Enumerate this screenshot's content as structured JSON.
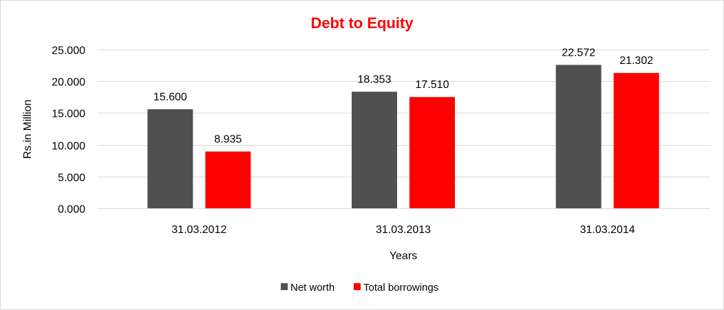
{
  "chart_data": {
    "type": "bar",
    "title": "Debt to Equity",
    "title_color": "#ff0000",
    "xlabel": "Years",
    "ylabel": "Rs.in Million",
    "categories": [
      "31.03.2012",
      "31.03.2013",
      "31.03.2014"
    ],
    "series": [
      {
        "name": "Net worth",
        "color": "#505050",
        "values": [
          15.6,
          18.353,
          22.572
        ],
        "labels": [
          "15.600",
          "18.353",
          "22.572"
        ]
      },
      {
        "name": "Total borrowings",
        "color": "#ff0000",
        "values": [
          8.935,
          17.51,
          21.302
        ],
        "labels": [
          "8.935",
          "17.510",
          "21.302"
        ]
      }
    ],
    "ylim": [
      0,
      25
    ],
    "yticks": [
      0,
      5,
      10,
      15,
      20,
      25
    ],
    "ytick_labels": [
      "0.000",
      "5.000",
      "10.000",
      "15.000",
      "20.000",
      "25.000"
    ],
    "grid": true,
    "grid_color": "#d9d9d9",
    "legend_position": "bottom"
  }
}
